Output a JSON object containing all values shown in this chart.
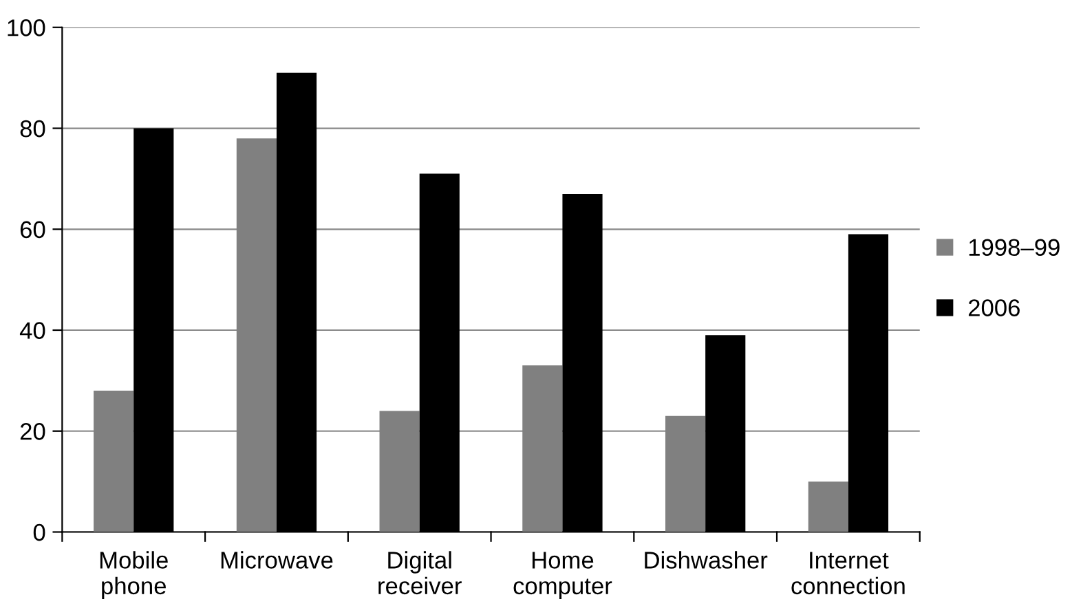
{
  "chart_data": {
    "type": "bar",
    "categories": [
      "Mobile phone",
      "Microwave",
      "Digital receiver",
      "Home computer",
      "Dishwasher",
      "Internet connection"
    ],
    "series": [
      {
        "name": "1998–99",
        "color": "#808080",
        "values": [
          28,
          78,
          24,
          33,
          23,
          10
        ]
      },
      {
        "name": "2006",
        "color": "#000000",
        "values": [
          80,
          91,
          71,
          67,
          39,
          59
        ]
      }
    ],
    "ylim": [
      0,
      100
    ],
    "yticks": [
      0,
      20,
      40,
      60,
      80,
      100
    ],
    "grid": "y",
    "legend": "right"
  }
}
